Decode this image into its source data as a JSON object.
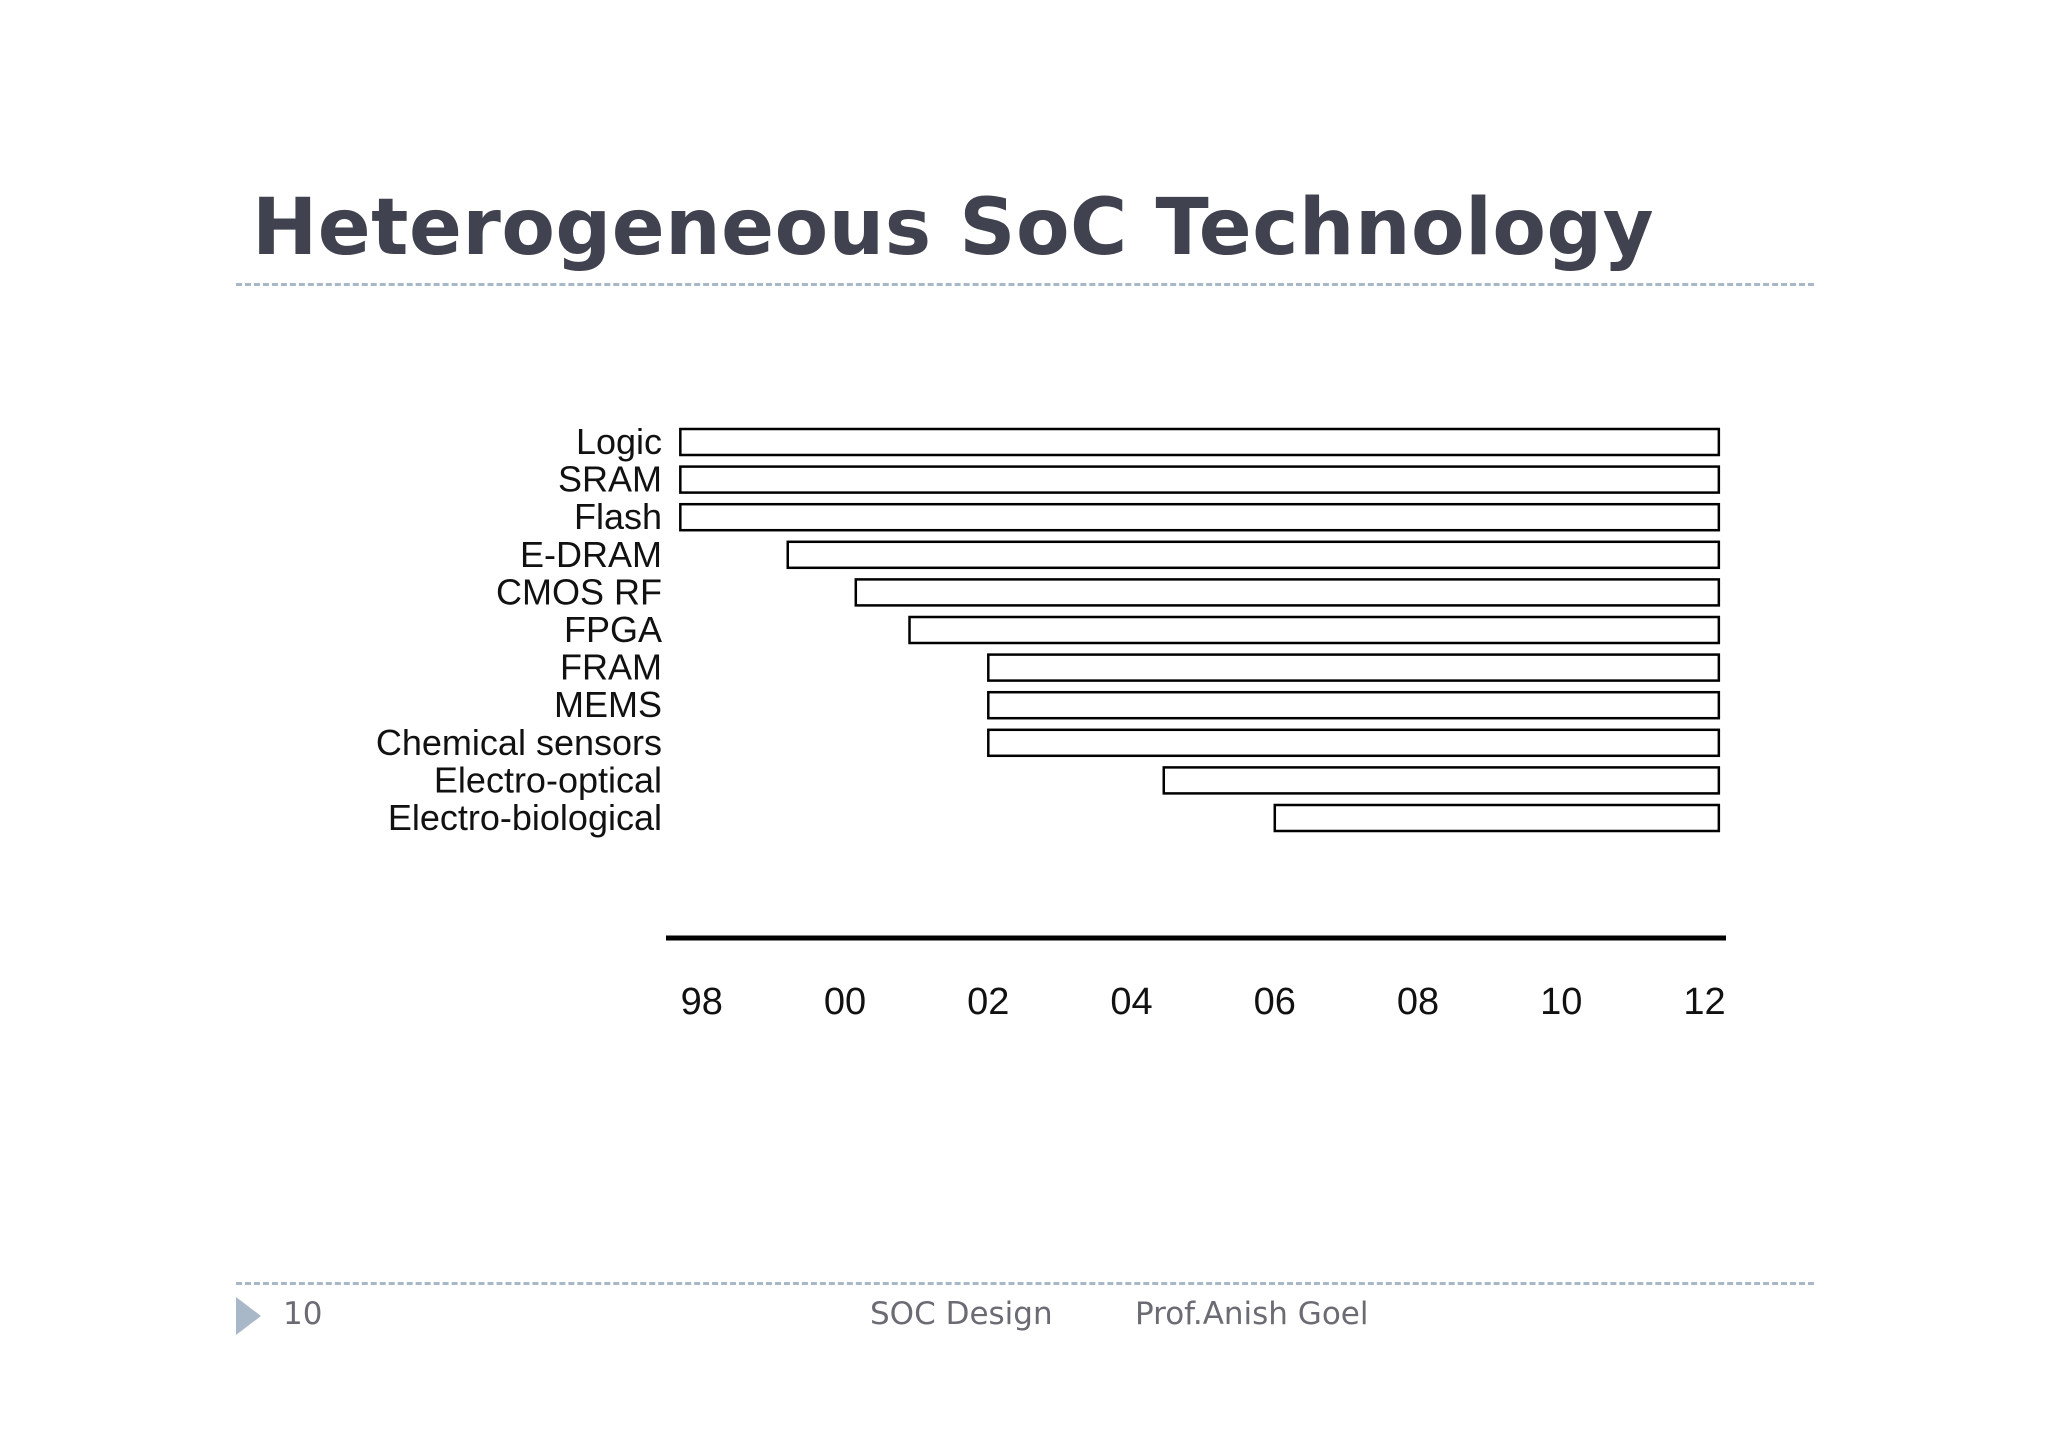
{
  "slide": {
    "title": "Heterogeneous SoC Technology"
  },
  "footer": {
    "page_number": "10",
    "course": "SOC Design",
    "author": "Prof.Anish Goel",
    "arrow_color": "#a9b8c9"
  },
  "colors": {
    "title": "#41424f",
    "rule": "#a9b8c9",
    "bar_fill": "#ffffff",
    "bar_stroke": "#000000"
  },
  "chart_data": {
    "type": "bar",
    "orientation": "horizontal-timeline",
    "title": "",
    "xlabel": "",
    "ylabel": "",
    "xlim": [
      1997.5,
      2012.3
    ],
    "x_ticks": [
      1998,
      2000,
      2002,
      2004,
      2006,
      2008,
      2010,
      2012
    ],
    "x_tick_labels": [
      "98",
      "00",
      "02",
      "04",
      "06",
      "08",
      "10",
      "12"
    ],
    "grid": false,
    "legend": "none",
    "categories": [
      "Logic",
      "SRAM",
      "Flash",
      "E-DRAM",
      "CMOS RF",
      "FPGA",
      "FRAM",
      "MEMS",
      "Chemical sensors",
      "Electro-optical",
      "Electro-biological"
    ],
    "series": [
      {
        "start": [
          1997.7,
          1997.7,
          1997.7,
          1999.2,
          2000.15,
          2000.9,
          2002.0,
          2002.0,
          2002.0,
          2004.45,
          2006.0
        ],
        "end": [
          2012.2,
          2012.2,
          2012.2,
          2012.2,
          2012.2,
          2012.2,
          2012.2,
          2012.2,
          2012.2,
          2012.2,
          2012.2
        ]
      }
    ]
  }
}
